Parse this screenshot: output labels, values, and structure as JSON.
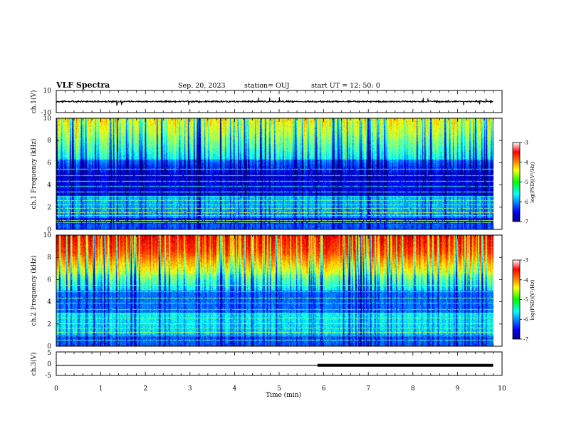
{
  "header": {
    "title": "VLF Spectra",
    "date": "Sep. 20, 2023",
    "station": "station= OUJ",
    "start": "start  UT  =   12: 50: 0"
  },
  "chart_data": [
    {
      "type": "line",
      "panel": "ch1-waveform",
      "ylabel": "ch.1(V)",
      "ylim": [
        -10,
        10
      ],
      "y_ticks": [
        "10",
        "-10"
      ],
      "xlim": [
        0,
        10
      ],
      "baseline": 0,
      "amplitude_range": [
        -2,
        2
      ],
      "occasional_spike": 4
    },
    {
      "type": "heatmap",
      "panel": "ch1-spectrogram",
      "ylabel": "ch.1 Frequency (kHz)",
      "ylim": [
        0,
        10
      ],
      "xlim": [
        0,
        9.8
      ],
      "y_ticks": [
        "0",
        "2",
        "4",
        "6",
        "8",
        "10"
      ],
      "colorbar": {
        "label": "log(PSD)(V²/Hz)",
        "range": [
          -7,
          -3
        ],
        "ticks": [
          "-3",
          "-4",
          "-5",
          "-6",
          "-7"
        ]
      }
    },
    {
      "type": "heatmap",
      "panel": "ch2-spectrogram",
      "ylabel": "ch.2 Frequency (kHz)",
      "ylim": [
        0,
        10
      ],
      "xlim": [
        0,
        9.8
      ],
      "y_ticks": [
        "0",
        "2",
        "4",
        "6",
        "8",
        "10"
      ],
      "colorbar": {
        "label": "log(PSD)(V²/Hz)",
        "range": [
          -7,
          -3
        ],
        "ticks": [
          "-3",
          "-4",
          "-5",
          "-6",
          "-7"
        ]
      }
    },
    {
      "type": "line",
      "panel": "ch3-waveform",
      "ylabel": "ch.3(V)",
      "ylim": [
        -5,
        5
      ],
      "y_ticks": [
        "5",
        "0",
        "-5"
      ],
      "xlim": [
        0,
        10
      ],
      "level": -0.7,
      "thick_from_x": 5.86
    }
  ],
  "x_axis": {
    "label": "Time  (min)",
    "ticks": [
      "0",
      "1",
      "2",
      "3",
      "4",
      "5",
      "6",
      "7",
      "8",
      "9",
      "10"
    ]
  },
  "colors": {
    "frame": "#000000",
    "background": "#ffffff"
  }
}
